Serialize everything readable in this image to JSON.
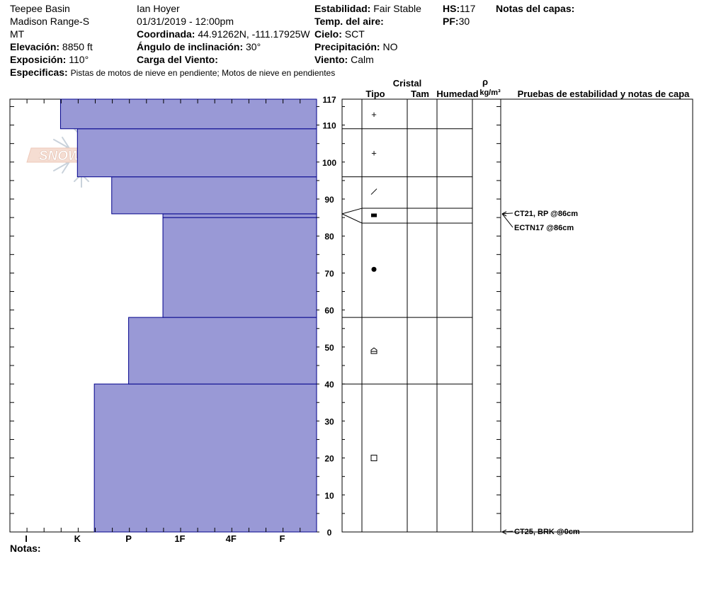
{
  "header": {
    "location": "Teepee Basin",
    "range": "Madison Range-S",
    "state": "MT",
    "elevation_label": "Elevación:",
    "elevation": "8850 ft",
    "aspect_label": "Exposición:",
    "aspect": "110°",
    "specifics_label": "Especificas:",
    "specifics": "Pistas de motos de nieve en pendiente; Motos de nieve en pendientes",
    "observer": "Ian Hoyer",
    "datetime": "01/31/2019 - 12:00pm",
    "coord_label": "Coordinada:",
    "coord": "44.91262N, -111.17925W",
    "slope_label": "Ángulo de inclinación:",
    "slope": "30°",
    "wind_load_label": "Carga del Viento:",
    "wind_load": "",
    "stability_label": "Estabilidad:",
    "stability": "Fair Stable",
    "air_temp_label": "Temp. del aire:",
    "air_temp": "",
    "sky_label": "Cielo:",
    "sky": "SCT",
    "precip_label": "Precipitación:",
    "precip": "NO",
    "wind_label": "Viento:",
    "wind": "Calm",
    "hs_label": "HS:",
    "hs": "117",
    "pf_label": "PF:",
    "pf": "30",
    "layer_notes_label": "Notas del capas:"
  },
  "watermark": {
    "text": "SNOW PILOT"
  },
  "table_headers": {
    "crystal": "Cristal",
    "type": "Tipo",
    "size": "Tam",
    "moisture": "Humedad",
    "rho": "ρ",
    "density_unit": "kg/m³",
    "tests": "Pruebas de estabilidad y notas de capa"
  },
  "notes_label": "Notas:",
  "chart_data": {
    "type": "bar",
    "orientation": "horizontal",
    "y_range": [
      0,
      117
    ],
    "y_ticks": [
      0,
      10,
      20,
      30,
      40,
      50,
      60,
      70,
      80,
      90,
      100,
      110,
      117
    ],
    "hardness_labels": [
      "I",
      "K",
      "P",
      "1F",
      "4F",
      "F"
    ],
    "fill_color": "#9999d6",
    "edge_color": "#00008b",
    "layers": [
      {
        "bottom": 0,
        "top": 40,
        "hardness": 1.33
      },
      {
        "bottom": 40,
        "top": 58,
        "hardness": 2.0
      },
      {
        "bottom": 58,
        "top": 85,
        "hardness": 2.67
      },
      {
        "bottom": 85,
        "top": 86,
        "hardness": 2.67
      },
      {
        "bottom": 86,
        "top": 96,
        "hardness": 1.67
      },
      {
        "bottom": 96,
        "top": 109,
        "hardness": 1.0
      },
      {
        "bottom": 109,
        "top": 117,
        "hardness": 0.67
      }
    ],
    "crystal_boundaries": [
      117,
      109,
      96,
      87.5,
      83.5,
      58,
      40,
      0
    ],
    "crystal_symbols": [
      {
        "height": 113,
        "symbol": "+"
      },
      {
        "height": 102.5,
        "symbol": "+"
      },
      {
        "height": 92,
        "symbol": "/"
      },
      {
        "height": 85.5,
        "symbol": "■"
      },
      {
        "height": 71,
        "symbol": "●"
      },
      {
        "height": 49,
        "symbol": "⌂"
      },
      {
        "height": 20,
        "symbol": "□"
      }
    ],
    "tests": [
      {
        "height": 86,
        "label": "CT21, RP @86cm"
      },
      {
        "height": 86,
        "label": "ECTN17 @86cm"
      },
      {
        "height": 0,
        "label": "CT25, BRK @0cm"
      }
    ]
  }
}
